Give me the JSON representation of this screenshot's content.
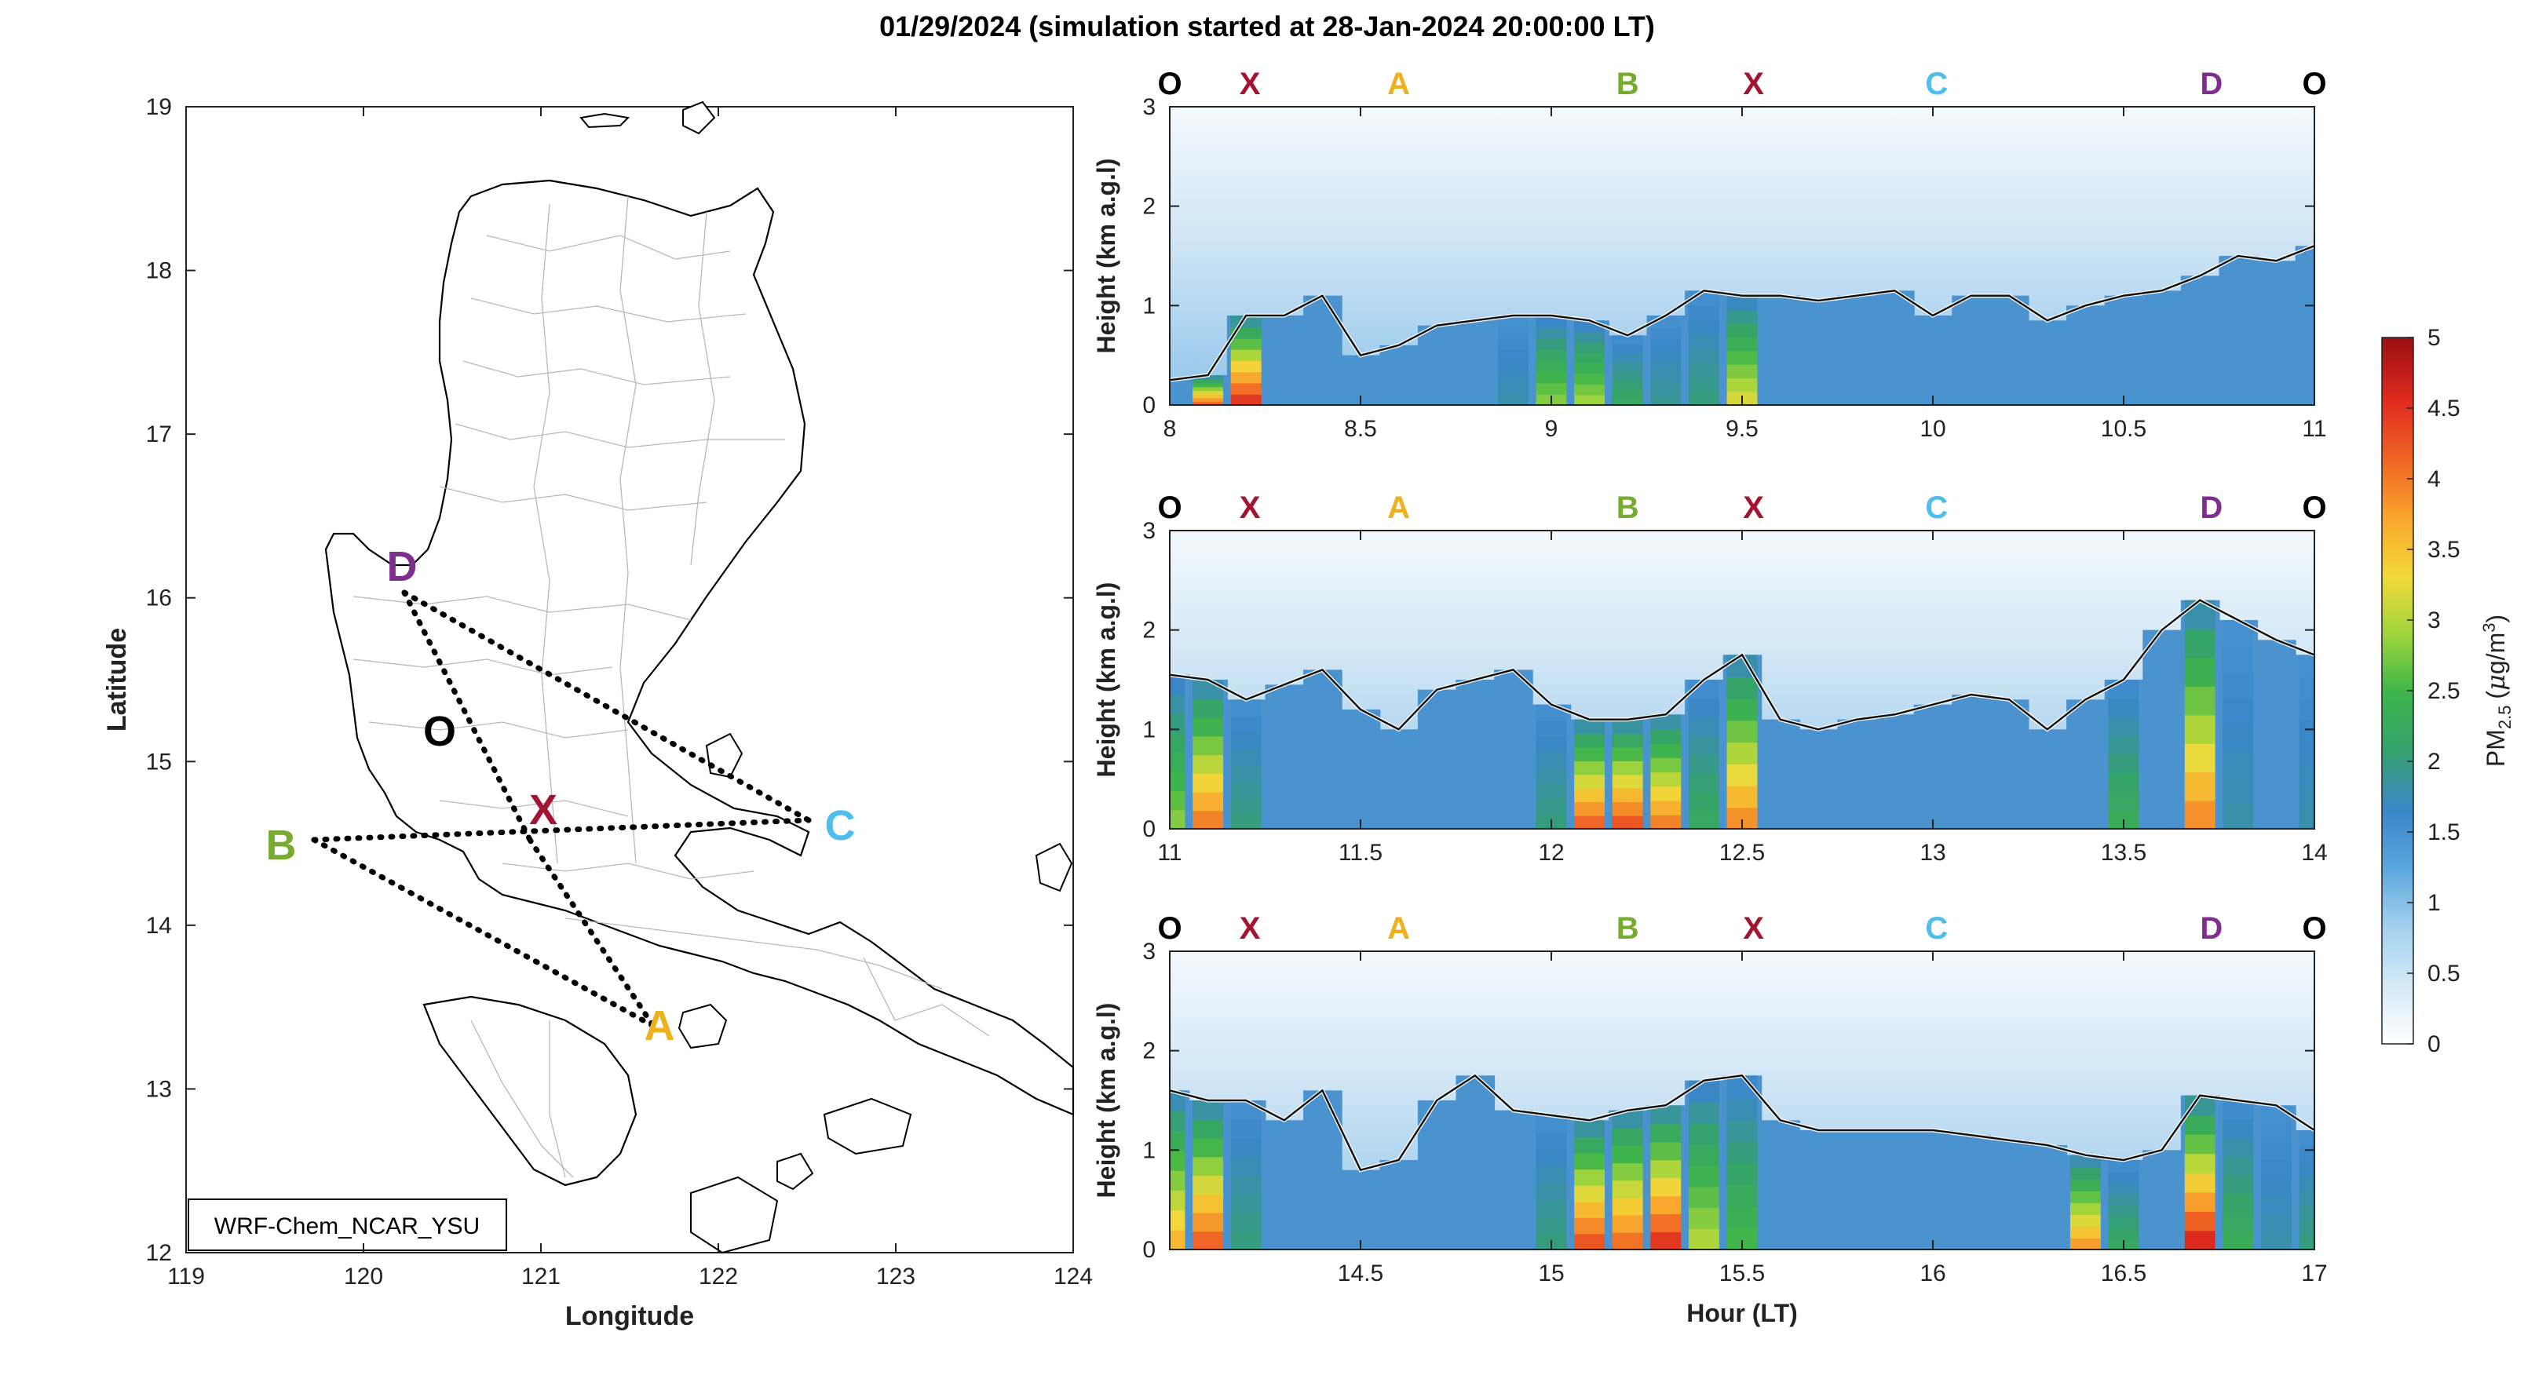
{
  "title": "01/29/2024 (simulation started at 28-Jan-2024 20:00:00 LT)",
  "map": {
    "xlabel": "Longitude",
    "ylabel": "Latitude",
    "model_label": "WRF-Chem_NCAR_YSU",
    "xticks": [
      "119",
      "120",
      "121",
      "122",
      "123",
      "124"
    ],
    "yticks": [
      "12",
      "13",
      "14",
      "15",
      "16",
      "17",
      "18",
      "19"
    ],
    "sites": [
      {
        "name": "O",
        "color": "#000000"
      },
      {
        "name": "X",
        "color": "#a2142f"
      },
      {
        "name": "A",
        "color": "#edb120"
      },
      {
        "name": "B",
        "color": "#77ac30"
      },
      {
        "name": "C",
        "color": "#4dbeee"
      },
      {
        "name": "D",
        "color": "#7e2f8e"
      }
    ]
  },
  "panels_common": {
    "ylabel": "Height (km a.g.l)",
    "yticks": [
      "0",
      "1",
      "2",
      "3"
    ],
    "route_markers": [
      "O",
      "X",
      "A",
      "B",
      "X",
      "C",
      "D",
      "O"
    ]
  },
  "panels": [
    {
      "xticks": [
        "8",
        "8.5",
        "9",
        "9.5",
        "10",
        "10.5",
        "11"
      ]
    },
    {
      "xticks": [
        "11",
        "11.5",
        "12",
        "12.5",
        "13",
        "13.5",
        "14"
      ]
    },
    {
      "xticks": [
        "14.5",
        "15",
        "15.5",
        "16",
        "16.5",
        "17"
      ],
      "xlabel": "Hour (LT)"
    }
  ],
  "colorbar": {
    "label": "PM2.5 (μg/m3)",
    "label_main": "PM",
    "label_sub": "2.5",
    "label_units_a": "(",
    "label_mu": "μ",
    "label_units_b": "g/m",
    "label_sup": "3",
    "label_units_c": ")",
    "ticks": [
      "0",
      "0.5",
      "1",
      "1.5",
      "2",
      "2.5",
      "3",
      "3.5",
      "4",
      "4.5",
      "5"
    ],
    "range": [
      0,
      5
    ],
    "colors": [
      "#ffffff",
      "#d6eaf7",
      "#9fcfee",
      "#5aa5db",
      "#3b86c8",
      "#34a36a",
      "#3fb54a",
      "#9ed43c",
      "#f1d93a",
      "#f8a92d",
      "#f06a25",
      "#e02b1f",
      "#9b0f13"
    ]
  },
  "chart_data": [
    {
      "type": "heatmap",
      "panel": 1,
      "xlabel": "",
      "ylabel": "Height (km a.g.l)",
      "xlim": [
        8,
        11
      ],
      "ylim": [
        0,
        3
      ],
      "x": [
        8.0,
        8.1,
        8.2,
        8.3,
        8.4,
        8.5,
        8.6,
        8.7,
        8.8,
        8.9,
        9.0,
        9.1,
        9.2,
        9.3,
        9.4,
        9.5,
        9.6,
        9.7,
        9.8,
        9.9,
        10.0,
        10.1,
        10.2,
        10.3,
        10.4,
        10.5,
        10.6,
        10.7,
        10.8,
        10.9,
        11.0
      ],
      "pblh_km": [
        0.25,
        0.3,
        0.9,
        0.9,
        1.1,
        0.5,
        0.6,
        0.8,
        0.85,
        0.9,
        0.9,
        0.85,
        0.7,
        0.9,
        1.15,
        1.1,
        1.1,
        1.05,
        1.1,
        1.15,
        0.9,
        1.1,
        1.1,
        0.85,
        1.0,
        1.1,
        1.15,
        1.3,
        1.5,
        1.45,
        1.6
      ],
      "surface_pm25": [
        1.5,
        4.2,
        4.5,
        1.5,
        1.5,
        1.5,
        1.5,
        1.5,
        1.5,
        1.8,
        2.8,
        2.9,
        2.2,
        1.9,
        2.0,
        3.2,
        1.6,
        1.5,
        1.5,
        1.5,
        1.5,
        1.5,
        1.5,
        1.5,
        1.5,
        1.5,
        1.5,
        1.5,
        1.5,
        1.5,
        1.5
      ]
    },
    {
      "type": "heatmap",
      "panel": 2,
      "xlabel": "",
      "ylabel": "Height (km a.g.l)",
      "xlim": [
        11,
        14
      ],
      "ylim": [
        0,
        3
      ],
      "x": [
        11.0,
        11.1,
        11.2,
        11.3,
        11.4,
        11.5,
        11.6,
        11.7,
        11.8,
        11.9,
        12.0,
        12.1,
        12.2,
        12.3,
        12.4,
        12.5,
        12.6,
        12.7,
        12.8,
        12.9,
        13.0,
        13.1,
        13.2,
        13.3,
        13.4,
        13.5,
        13.6,
        13.7,
        13.8,
        13.9,
        14.0
      ],
      "pblh_km": [
        1.55,
        1.5,
        1.3,
        1.45,
        1.6,
        1.2,
        1.0,
        1.4,
        1.5,
        1.6,
        1.25,
        1.1,
        1.1,
        1.15,
        1.5,
        1.75,
        1.1,
        1.0,
        1.1,
        1.15,
        1.25,
        1.35,
        1.3,
        1.0,
        1.3,
        1.5,
        2.0,
        2.3,
        2.1,
        1.9,
        1.75
      ],
      "surface_pm25": [
        2.8,
        4.0,
        2.0,
        1.5,
        1.5,
        1.5,
        1.5,
        1.5,
        1.5,
        1.6,
        2.0,
        4.2,
        4.3,
        4.0,
        2.2,
        3.9,
        1.5,
        1.5,
        1.5,
        1.5,
        1.5,
        1.5,
        1.5,
        1.5,
        1.5,
        2.3,
        1.6,
        3.9,
        1.8,
        1.6,
        1.8
      ]
    },
    {
      "type": "heatmap",
      "panel": 3,
      "xlabel": "Hour (LT)",
      "ylabel": "Height (km a.g.l)",
      "xlim": [
        14,
        17
      ],
      "ylim": [
        0,
        3
      ],
      "x": [
        14.0,
        14.1,
        14.2,
        14.3,
        14.4,
        14.5,
        14.6,
        14.7,
        14.8,
        14.9,
        15.0,
        15.1,
        15.2,
        15.3,
        15.4,
        15.5,
        15.6,
        15.7,
        15.8,
        15.9,
        16.0,
        16.1,
        16.2,
        16.3,
        16.4,
        16.5,
        16.6,
        16.7,
        16.8,
        16.9,
        17.0
      ],
      "pblh_km": [
        1.6,
        1.5,
        1.5,
        1.3,
        1.6,
        0.8,
        0.9,
        1.5,
        1.75,
        1.4,
        1.35,
        1.3,
        1.4,
        1.45,
        1.7,
        1.75,
        1.3,
        1.2,
        1.2,
        1.2,
        1.2,
        1.15,
        1.1,
        1.05,
        0.95,
        0.9,
        1.0,
        1.55,
        1.5,
        1.45,
        1.2
      ],
      "surface_pm25": [
        3.6,
        4.2,
        2.0,
        1.5,
        1.5,
        1.5,
        1.5,
        1.5,
        1.5,
        1.6,
        2.0,
        4.3,
        4.1,
        4.5,
        3.0,
        2.5,
        1.5,
        1.5,
        1.5,
        1.5,
        1.5,
        1.5,
        1.5,
        1.5,
        3.8,
        2.2,
        1.5,
        4.6,
        2.3,
        1.8,
        2.0
      ]
    }
  ]
}
